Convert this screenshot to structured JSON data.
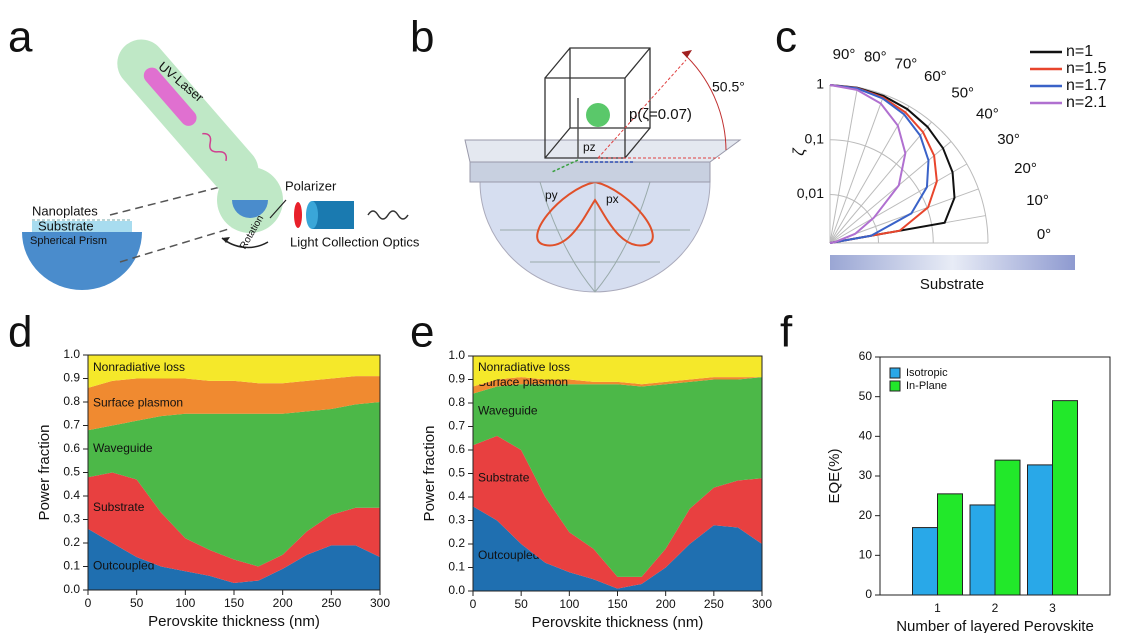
{
  "panel_labels": [
    "a",
    "b",
    "c",
    "d",
    "e",
    "f"
  ],
  "panel_a": {
    "uv_laser": "UV-Laser",
    "nanoplates": "Nanoplates",
    "substrate": "Substrate",
    "prism": "Spherical Prism",
    "polarizer": "Polarizer",
    "rotation": "Rotation",
    "optics": "Light Collection Optics"
  },
  "panel_b": {
    "angle": "50.5°",
    "dipole": "p(ζ=0.07)",
    "pz": "pz",
    "py": "py",
    "px": "px"
  },
  "chart_data": [
    {
      "type": "polar",
      "r_label": "ζ",
      "caption": "Substrate",
      "log_r": true,
      "angles": [
        0,
        10,
        20,
        30,
        40,
        50,
        60,
        70,
        80,
        90
      ],
      "angle_ticks": [
        {
          "value": 0,
          "label": "0°"
        },
        {
          "value": 10,
          "label": "10°"
        },
        {
          "value": 20,
          "label": "20°"
        },
        {
          "value": 30,
          "label": "30°"
        },
        {
          "value": 40,
          "label": "40°"
        },
        {
          "value": 50,
          "label": "50°"
        },
        {
          "value": 60,
          "label": "60°"
        },
        {
          "value": 70,
          "label": "70°"
        },
        {
          "value": 80,
          "label": "80°"
        },
        {
          "value": 90,
          "label": "90°"
        }
      ],
      "rlim": [
        0.0013,
        1
      ],
      "rticks": [
        1,
        {
          "value": 0.1,
          "label": "0,1"
        },
        {
          "value": 0.01,
          "label": "0,01"
        }
      ],
      "series": [
        {
          "name": "n=1",
          "color": "#111111",
          "values": [
            0.0013,
            0.174,
            0.342,
            0.5,
            0.643,
            0.766,
            0.866,
            0.94,
            0.985,
            1
          ]
        },
        {
          "name": "n=1.5",
          "color": "#e8452c",
          "values": [
            0.0013,
            0.0254,
            0.105,
            0.233,
            0.395,
            0.572,
            0.739,
            0.878,
            0.968,
            1
          ]
        },
        {
          "name": "n=1.7",
          "color": "#3a62c8",
          "values": [
            0.0013,
            0.0075,
            0.0496,
            0.144,
            0.29,
            0.475,
            0.668,
            0.841,
            0.958,
            1
          ]
        },
        {
          "name": "n=2.1",
          "color": "#b070d0",
          "values": [
            0.0013,
            0.0016,
            0.004,
            0.011,
            0.057,
            0.18,
            0.39,
            0.67,
            0.9,
            1
          ]
        }
      ]
    },
    {
      "type": "stacked_area",
      "x_label": "Perovskite thickness (nm)",
      "y_label": "Power fraction",
      "x": [
        0,
        25,
        50,
        75,
        100,
        125,
        150,
        175,
        200,
        225,
        250,
        275,
        300
      ],
      "xlim": [
        0,
        300
      ],
      "xticks": [
        0,
        50,
        100,
        150,
        200,
        250,
        300
      ],
      "ylim": [
        0,
        1
      ],
      "yticks": [
        {
          "value": 0,
          "label": "0.0"
        },
        0.1,
        0.2,
        0.3,
        0.4,
        0.5,
        0.6,
        0.7,
        0.8,
        0.9,
        {
          "value": 1,
          "label": "1.0"
        }
      ],
      "series": [
        {
          "name": "Outcoupled",
          "color": "#1f6fb0",
          "values": [
            0.26,
            0.2,
            0.14,
            0.1,
            0.08,
            0.06,
            0.03,
            0.04,
            0.09,
            0.15,
            0.19,
            0.19,
            0.14
          ]
        },
        {
          "name": "Substrate",
          "color": "#e84040",
          "values": [
            0.22,
            0.3,
            0.33,
            0.23,
            0.14,
            0.11,
            0.1,
            0.06,
            0.06,
            0.1,
            0.13,
            0.16,
            0.21
          ]
        },
        {
          "name": "Waveguide",
          "color": "#4cb848",
          "values": [
            0.2,
            0.2,
            0.25,
            0.41,
            0.53,
            0.58,
            0.62,
            0.65,
            0.6,
            0.51,
            0.45,
            0.44,
            0.45
          ]
        },
        {
          "name": "Surface plasmon",
          "color": "#f08a30",
          "values": [
            0.18,
            0.19,
            0.18,
            0.16,
            0.15,
            0.14,
            0.14,
            0.13,
            0.13,
            0.13,
            0.13,
            0.12,
            0.11
          ]
        },
        {
          "name": "Nonradiative loss",
          "color": "#f5e82a",
          "values": [
            0.14,
            0.11,
            0.1,
            0.1,
            0.1,
            0.11,
            0.11,
            0.12,
            0.12,
            0.11,
            0.1,
            0.09,
            0.09
          ]
        }
      ]
    },
    {
      "type": "stacked_area",
      "x_label": "Perovskite thickness (nm)",
      "y_label": "Power fraction",
      "x": [
        0,
        25,
        50,
        75,
        100,
        125,
        150,
        175,
        200,
        225,
        250,
        275,
        300
      ],
      "xlim": [
        0,
        300
      ],
      "xticks": [
        0,
        50,
        100,
        150,
        200,
        250,
        300
      ],
      "ylim": [
        0,
        1
      ],
      "yticks": [
        {
          "value": 0,
          "label": "0.0"
        },
        0.1,
        0.2,
        0.3,
        0.4,
        0.5,
        0.6,
        0.7,
        0.8,
        0.9,
        {
          "value": 1,
          "label": "1.0"
        }
      ],
      "series": [
        {
          "name": "Outcoupled",
          "color": "#1f6fb0",
          "values": [
            0.36,
            0.3,
            0.2,
            0.12,
            0.08,
            0.05,
            0.01,
            0.03,
            0.1,
            0.2,
            0.28,
            0.27,
            0.2
          ]
        },
        {
          "name": "Substrate",
          "color": "#e84040",
          "values": [
            0.26,
            0.36,
            0.4,
            0.28,
            0.17,
            0.13,
            0.05,
            0.03,
            0.08,
            0.15,
            0.16,
            0.2,
            0.28
          ]
        },
        {
          "name": "Waveguide",
          "color": "#4cb848",
          "values": [
            0.22,
            0.21,
            0.28,
            0.48,
            0.63,
            0.7,
            0.82,
            0.81,
            0.7,
            0.54,
            0.46,
            0.43,
            0.43
          ]
        },
        {
          "name": "Surface plasmon",
          "color": "#f08a30",
          "values": [
            0.03,
            0.03,
            0.03,
            0.02,
            0.02,
            0.01,
            0.01,
            0.01,
            0.01,
            0.01,
            0.01,
            0.01,
            0
          ]
        },
        {
          "name": "Nonradiative loss",
          "color": "#f5e82a",
          "values": [
            0.13,
            0.1,
            0.09,
            0.1,
            0.1,
            0.11,
            0.11,
            0.12,
            0.11,
            0.1,
            0.09,
            0.09,
            0.09
          ]
        }
      ]
    },
    {
      "type": "bar",
      "x_label": "Number of layered Perovskite",
      "y_label": "EQE(%)",
      "categories": [
        "1",
        "2",
        "3"
      ],
      "ylim": [
        0,
        60
      ],
      "yticks": [
        0,
        10,
        20,
        30,
        40,
        50,
        60
      ],
      "legend": "upper-left",
      "series": [
        {
          "name": "Isotropic",
          "color": "#29a8e8",
          "values": [
            17,
            22.7,
            32.8
          ]
        },
        {
          "name": "In-Plane",
          "color": "#22e82a",
          "values": [
            25.5,
            34,
            49
          ]
        }
      ]
    }
  ]
}
